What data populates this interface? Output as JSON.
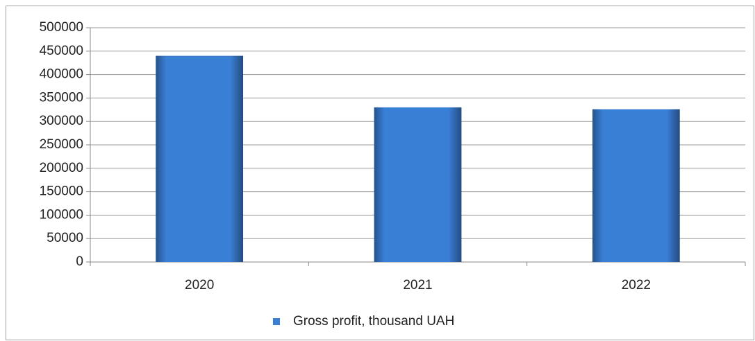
{
  "chart_data": {
    "type": "bar",
    "categories": [
      "2020",
      "2021",
      "2022"
    ],
    "series": [
      {
        "name": "Gross profit, thousand UAH",
        "color": "#3a7fd6",
        "values": [
          440000,
          330000,
          326000
        ]
      }
    ],
    "ylim": [
      0,
      500000
    ],
    "yticks": [
      0,
      50000,
      100000,
      150000,
      200000,
      250000,
      300000,
      350000,
      400000,
      450000,
      500000
    ],
    "grid": true,
    "legend": "bottom"
  }
}
